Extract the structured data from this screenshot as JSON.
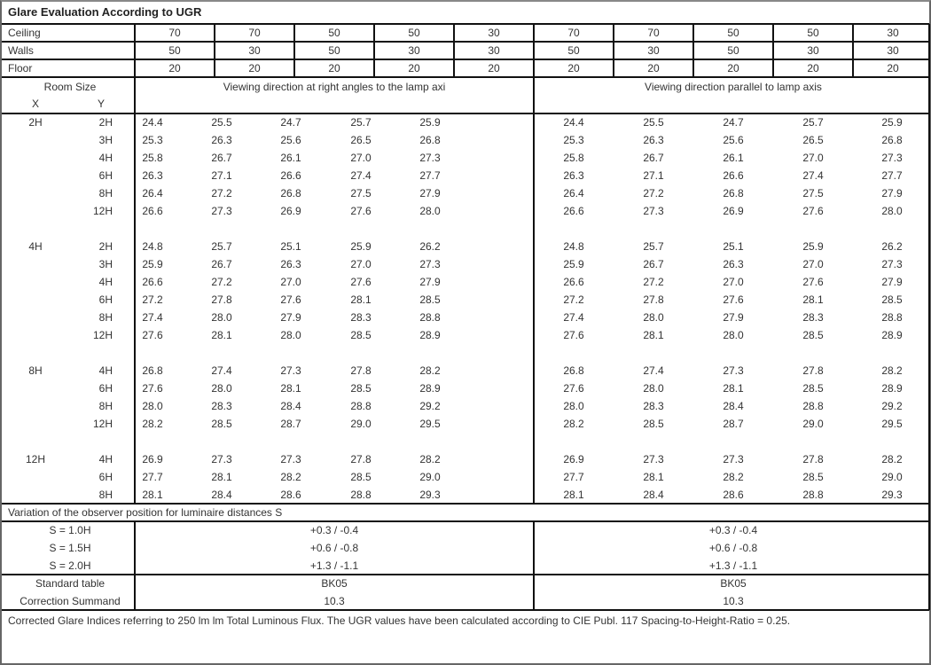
{
  "title": "Glare Evaluation According to UGR",
  "reflectances": [
    {
      "label": "Ceiling",
      "values": [
        "70",
        "70",
        "50",
        "50",
        "30",
        "70",
        "70",
        "50",
        "50",
        "30"
      ]
    },
    {
      "label": "Walls",
      "values": [
        "50",
        "30",
        "50",
        "30",
        "30",
        "50",
        "30",
        "50",
        "30",
        "30"
      ]
    },
    {
      "label": "Floor",
      "values": [
        "20",
        "20",
        "20",
        "20",
        "20",
        "20",
        "20",
        "20",
        "20",
        "20"
      ]
    }
  ],
  "room_size_label": "Room Size",
  "x_label": "X",
  "y_label": "Y",
  "direction_left": "Viewing direction at right angles to the lamp axi",
  "direction_right": "Viewing direction parallel to lamp axis",
  "blocks": [
    {
      "x": "2H",
      "rows": [
        {
          "y": "2H",
          "left": [
            "24.4",
            "25.5",
            "24.7",
            "25.7",
            "25.9"
          ],
          "right": [
            "24.4",
            "25.5",
            "24.7",
            "25.7",
            "25.9"
          ]
        },
        {
          "y": "3H",
          "left": [
            "25.3",
            "26.3",
            "25.6",
            "26.5",
            "26.8"
          ],
          "right": [
            "25.3",
            "26.3",
            "25.6",
            "26.5",
            "26.8"
          ]
        },
        {
          "y": "4H",
          "left": [
            "25.8",
            "26.7",
            "26.1",
            "27.0",
            "27.3"
          ],
          "right": [
            "25.8",
            "26.7",
            "26.1",
            "27.0",
            "27.3"
          ]
        },
        {
          "y": "6H",
          "left": [
            "26.3",
            "27.1",
            "26.6",
            "27.4",
            "27.7"
          ],
          "right": [
            "26.3",
            "27.1",
            "26.6",
            "27.4",
            "27.7"
          ]
        },
        {
          "y": "8H",
          "left": [
            "26.4",
            "27.2",
            "26.8",
            "27.5",
            "27.9"
          ],
          "right": [
            "26.4",
            "27.2",
            "26.8",
            "27.5",
            "27.9"
          ]
        },
        {
          "y": "12H",
          "left": [
            "26.6",
            "27.3",
            "26.9",
            "27.6",
            "28.0"
          ],
          "right": [
            "26.6",
            "27.3",
            "26.9",
            "27.6",
            "28.0"
          ]
        }
      ]
    },
    {
      "x": "4H",
      "rows": [
        {
          "y": "2H",
          "left": [
            "24.8",
            "25.7",
            "25.1",
            "25.9",
            "26.2"
          ],
          "right": [
            "24.8",
            "25.7",
            "25.1",
            "25.9",
            "26.2"
          ]
        },
        {
          "y": "3H",
          "left": [
            "25.9",
            "26.7",
            "26.3",
            "27.0",
            "27.3"
          ],
          "right": [
            "25.9",
            "26.7",
            "26.3",
            "27.0",
            "27.3"
          ]
        },
        {
          "y": "4H",
          "left": [
            "26.6",
            "27.2",
            "27.0",
            "27.6",
            "27.9"
          ],
          "right": [
            "26.6",
            "27.2",
            "27.0",
            "27.6",
            "27.9"
          ]
        },
        {
          "y": "6H",
          "left": [
            "27.2",
            "27.8",
            "27.6",
            "28.1",
            "28.5"
          ],
          "right": [
            "27.2",
            "27.8",
            "27.6",
            "28.1",
            "28.5"
          ]
        },
        {
          "y": "8H",
          "left": [
            "27.4",
            "28.0",
            "27.9",
            "28.3",
            "28.8"
          ],
          "right": [
            "27.4",
            "28.0",
            "27.9",
            "28.3",
            "28.8"
          ]
        },
        {
          "y": "12H",
          "left": [
            "27.6",
            "28.1",
            "28.0",
            "28.5",
            "28.9"
          ],
          "right": [
            "27.6",
            "28.1",
            "28.0",
            "28.5",
            "28.9"
          ]
        }
      ]
    },
    {
      "x": "8H",
      "rows": [
        {
          "y": "4H",
          "left": [
            "26.8",
            "27.4",
            "27.3",
            "27.8",
            "28.2"
          ],
          "right": [
            "26.8",
            "27.4",
            "27.3",
            "27.8",
            "28.2"
          ]
        },
        {
          "y": "6H",
          "left": [
            "27.6",
            "28.0",
            "28.1",
            "28.5",
            "28.9"
          ],
          "right": [
            "27.6",
            "28.0",
            "28.1",
            "28.5",
            "28.9"
          ]
        },
        {
          "y": "8H",
          "left": [
            "28.0",
            "28.3",
            "28.4",
            "28.8",
            "29.2"
          ],
          "right": [
            "28.0",
            "28.3",
            "28.4",
            "28.8",
            "29.2"
          ]
        },
        {
          "y": "12H",
          "left": [
            "28.2",
            "28.5",
            "28.7",
            "29.0",
            "29.5"
          ],
          "right": [
            "28.2",
            "28.5",
            "28.7",
            "29.0",
            "29.5"
          ]
        }
      ]
    },
    {
      "x": "12H",
      "rows": [
        {
          "y": "4H",
          "left": [
            "26.9",
            "27.3",
            "27.3",
            "27.8",
            "28.2"
          ],
          "right": [
            "26.9",
            "27.3",
            "27.3",
            "27.8",
            "28.2"
          ]
        },
        {
          "y": "6H",
          "left": [
            "27.7",
            "28.1",
            "28.2",
            "28.5",
            "29.0"
          ],
          "right": [
            "27.7",
            "28.1",
            "28.2",
            "28.5",
            "29.0"
          ]
        },
        {
          "y": "8H",
          "left": [
            "28.1",
            "28.4",
            "28.6",
            "28.8",
            "29.3"
          ],
          "right": [
            "28.1",
            "28.4",
            "28.6",
            "28.8",
            "29.3"
          ]
        }
      ]
    }
  ],
  "variation_title": "Variation of the observer position for luminaire distances S",
  "variations": [
    {
      "label": "S = 1.0H",
      "left": "+0.3 / -0.4",
      "right": "+0.3 / -0.4"
    },
    {
      "label": "S = 1.5H",
      "left": "+0.6 / -0.8",
      "right": "+0.6 / -0.8"
    },
    {
      "label": "S = 2.0H",
      "left": "+1.3 / -1.1",
      "right": "+1.3 / -1.1"
    }
  ],
  "standard": {
    "label": "Standard table",
    "left": "BK05",
    "right": "BK05"
  },
  "correction": {
    "label": "Correction Summand",
    "left": "10.3",
    "right": "10.3"
  },
  "footer": "Corrected Glare Indices referring to 250 lm lm Total Luminous Flux. The UGR values have been calculated according to CIE Publ. 117    Spacing-to-Height-Ratio = 0.25."
}
